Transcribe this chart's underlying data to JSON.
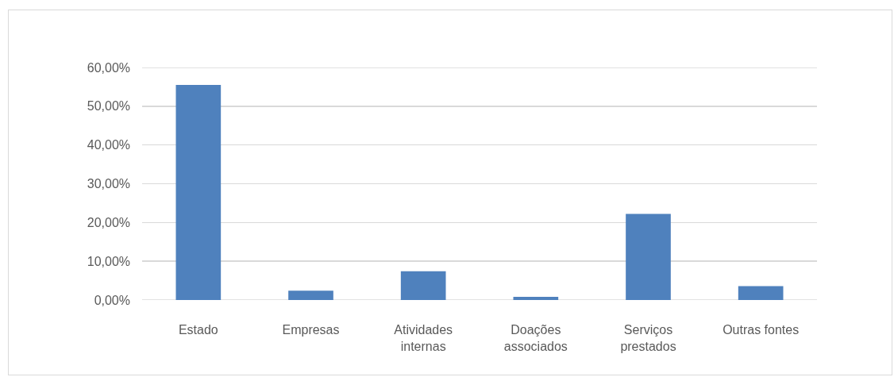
{
  "chart_data": {
    "type": "bar",
    "categories": [
      "Estado",
      "Empresas",
      "Atividades internas",
      "Doações associados",
      "Serviços prestados",
      "Outras fontes"
    ],
    "values": [
      55.5,
      2.4,
      7.4,
      0.8,
      22.2,
      3.6
    ],
    "color": "#4f81bd",
    "ylim": [
      0,
      60
    ],
    "yticks": [
      {
        "value": 0,
        "label": "0,00%"
      },
      {
        "value": 10,
        "label": "10,00%"
      },
      {
        "value": 20,
        "label": "20,00%"
      },
      {
        "value": 30,
        "label": "30,00%"
      },
      {
        "value": 40,
        "label": "40,00%"
      },
      {
        "value": 50,
        "label": "50,00%"
      },
      {
        "value": 60,
        "label": "60,00%"
      }
    ],
    "grid": "y"
  }
}
